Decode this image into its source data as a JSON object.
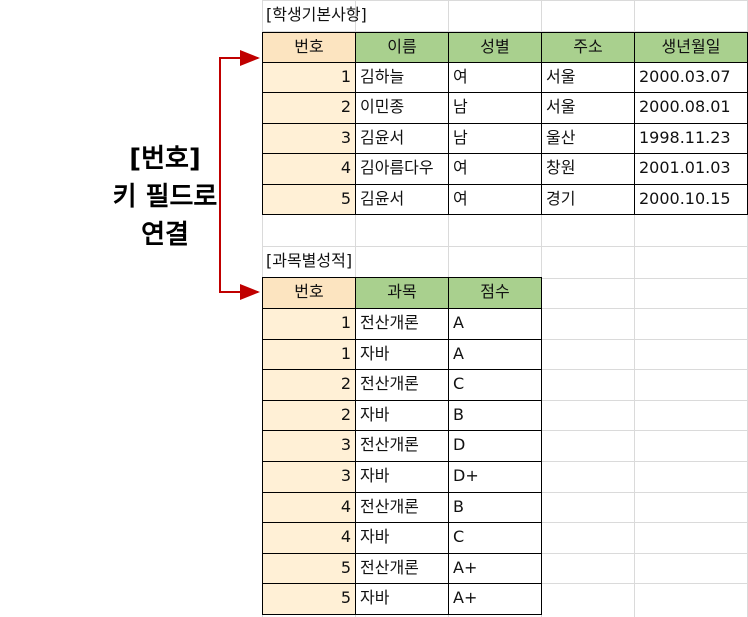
{
  "annotation": {
    "lines": [
      "[번호]",
      "키 필드로",
      "연결"
    ]
  },
  "student_table": {
    "title": "[학생기본사항]",
    "header": [
      "번호",
      "이름",
      "성별",
      "주소",
      "생년월일"
    ],
    "rows": [
      [
        "1",
        "김하늘",
        "여",
        "서울",
        "2000.03.07"
      ],
      [
        "2",
        "이민종",
        "남",
        "서울",
        "2000.08.01"
      ],
      [
        "3",
        "김윤서",
        "남",
        "울산",
        "1998.11.23"
      ],
      [
        "4",
        "김아름다우",
        "여",
        "창원",
        "2001.01.03"
      ],
      [
        "5",
        "김윤서",
        "여",
        "경기",
        "2000.10.15"
      ]
    ]
  },
  "grade_table": {
    "title": "[과목별성적]",
    "header": [
      "번호",
      "과목",
      "점수"
    ],
    "rows": [
      [
        "1",
        "전산개론",
        "A"
      ],
      [
        "1",
        "자바",
        "A"
      ],
      [
        "2",
        "전산개론",
        "C"
      ],
      [
        "2",
        "자바",
        "B"
      ],
      [
        "3",
        "전산개론",
        "D"
      ],
      [
        "3",
        "자바",
        "D+"
      ],
      [
        "4",
        "전산개론",
        "B"
      ],
      [
        "4",
        "자바",
        "C"
      ],
      [
        "5",
        "전산개론",
        "A+"
      ],
      [
        "5",
        "자바",
        "A+"
      ]
    ]
  }
}
